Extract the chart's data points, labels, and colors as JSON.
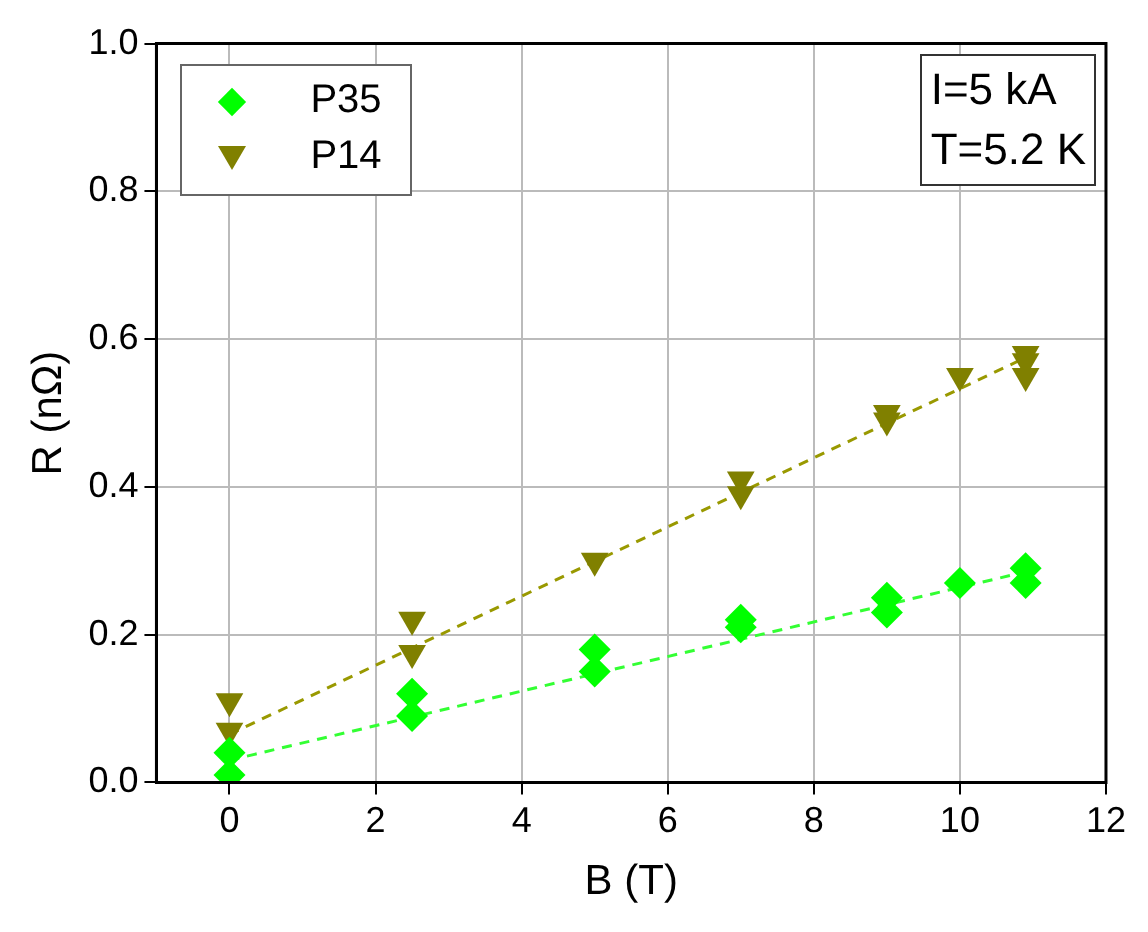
{
  "chart_data": {
    "type": "scatter",
    "xlabel": "B (T)",
    "ylabel": "R (nΩ)",
    "xlim": [
      -1,
      12
    ],
    "xticks": [
      0,
      2,
      4,
      6,
      8,
      10,
      12
    ],
    "ylim": [
      0,
      1
    ],
    "yticks": [
      {
        "value": 0,
        "label": "0.0"
      },
      0.2,
      0.4,
      0.6,
      0.8,
      {
        "value": 1,
        "label": "1.0"
      }
    ],
    "grid": true,
    "legend": "top left",
    "annotations": [
      "I=5 kA",
      "T=5.2 K"
    ],
    "series": [
      {
        "name": "P35",
        "type": "scatter",
        "marker": "diamond",
        "color": "#00ff00",
        "x": [
          0,
          0,
          2.5,
          2.5,
          5,
          5,
          7,
          7,
          9,
          9,
          10,
          10.9,
          10.9
        ],
        "values": [
          0.04,
          0.01,
          0.12,
          0.09,
          0.18,
          0.15,
          0.22,
          0.21,
          0.25,
          0.23,
          0.27,
          0.29,
          0.27
        ]
      },
      {
        "name": "P14",
        "type": "scatter",
        "marker": "triangle",
        "color": "#808000",
        "x": [
          0,
          0,
          2.5,
          2.5,
          5,
          7,
          7,
          9,
          9,
          10,
          10.9,
          10.9,
          10.9
        ],
        "values": [
          0.11,
          0.07,
          0.22,
          0.175,
          0.3,
          0.41,
          0.39,
          0.5,
          0.49,
          0.55,
          0.58,
          0.57,
          0.55
        ]
      },
      {
        "type": "line",
        "marker": "none",
        "line_style": "dashed",
        "color": "#33ff33",
        "x": [
          0,
          10.9
        ],
        "values": [
          0.03,
          0.285
        ]
      },
      {
        "type": "line",
        "marker": "none",
        "line_style": "dashed",
        "color": "#999900",
        "x": [
          0,
          10.9
        ],
        "values": [
          0.065,
          0.575
        ]
      }
    ]
  }
}
